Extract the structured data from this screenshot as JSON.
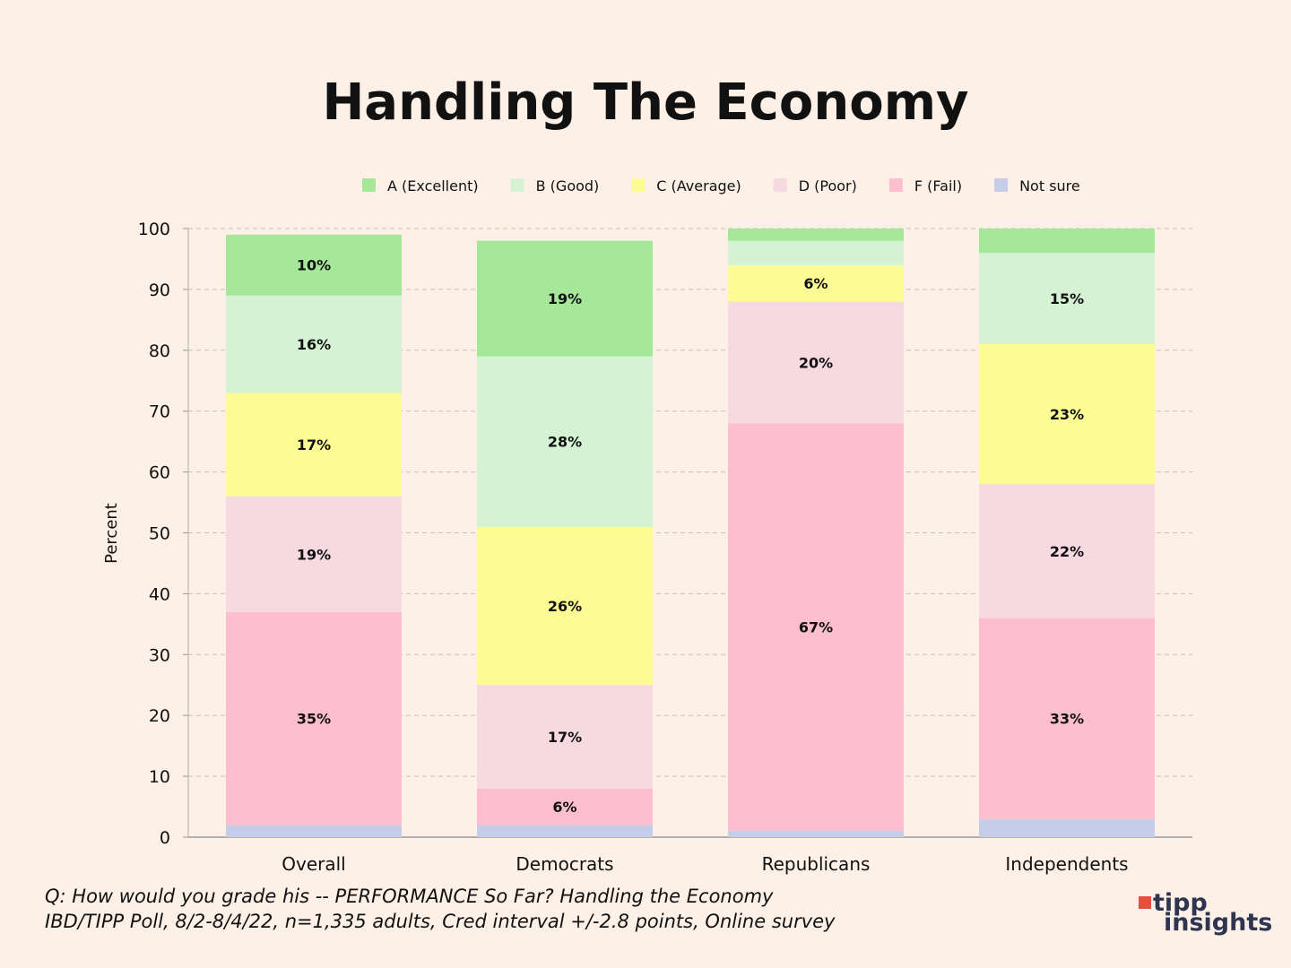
{
  "chart_data": {
    "type": "bar",
    "stacked": true,
    "title": "Handling The Economy",
    "ylabel": "Percent",
    "xlabel": "",
    "ylim": [
      0,
      100
    ],
    "yticks": [
      0,
      10,
      20,
      30,
      40,
      50,
      60,
      70,
      80,
      90,
      100
    ],
    "grid": true,
    "legend_position": "top-center",
    "categories": [
      "Overall",
      "Democrats",
      "Republicans",
      "Independents"
    ],
    "label_min": 5,
    "series": [
      {
        "name": "Not sure",
        "color": "#c5cde8",
        "values": [
          2,
          2,
          1,
          3
        ]
      },
      {
        "name": "F (Fail)",
        "color": "#fdbfcf",
        "values": [
          35,
          6,
          67,
          33
        ]
      },
      {
        "name": "D (Poor)",
        "color": "#f7d9e1",
        "values": [
          19,
          17,
          20,
          22
        ]
      },
      {
        "name": "C (Average)",
        "color": "#fdfc94",
        "values": [
          17,
          26,
          6,
          23
        ]
      },
      {
        "name": "B (Good)",
        "color": "#d5f3d3",
        "values": [
          16,
          28,
          4,
          15
        ]
      },
      {
        "name": "A (Excellent)",
        "color": "#a6e899",
        "values": [
          10,
          19,
          2,
          4
        ]
      }
    ],
    "legend_order": [
      "A (Excellent)",
      "B (Good)",
      "C (Average)",
      "D (Poor)",
      "F (Fail)",
      "Not sure"
    ]
  },
  "footer": {
    "question": "Q:  How would you grade his -- PERFORMANCE So Far? Handling the Economy",
    "source": "IBD/TIPP Poll, 8/2-8/4/22, n=1,335 adults, Cred interval +/-2.8 points, Online survey"
  },
  "logo": {
    "line1": "tipp",
    "line2": "insights"
  }
}
